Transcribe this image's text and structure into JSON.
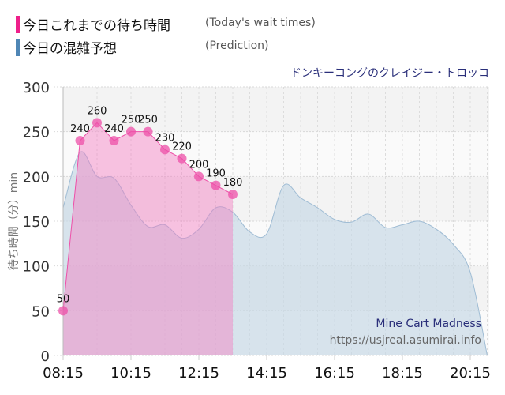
{
  "legend": {
    "items": [
      {
        "label_jp": "今日これまでの待ち時間",
        "label_en": "(Today's wait times)",
        "color": "#ee1f8a"
      },
      {
        "label_jp": "今日の混雑予想",
        "label_en": "(Prediction)",
        "color": "#4f86b5"
      }
    ]
  },
  "ride_title": "ドンキーコングのクレイジー・トロッコ",
  "watermark": {
    "title": "Mine Cart Madness",
    "url": "https://usjreal.asumirai.info"
  },
  "chart_data": {
    "type": "area",
    "title": "ドンキーコングのクレイジー・トロッコ",
    "xlabel": "",
    "ylabel": "待ち時間（分）min",
    "ylim": [
      0,
      300
    ],
    "yticks": [
      0,
      50,
      100,
      150,
      200,
      250,
      300
    ],
    "xticks": [
      "08:15",
      "10:15",
      "12:15",
      "14:15",
      "16:15",
      "18:15",
      "20:15"
    ],
    "grid": true,
    "legend_position": "top-left",
    "series": [
      {
        "name": "今日これまでの待ち時間 (Today's wait times)",
        "color": "#ee1f8a",
        "x": [
          "08:15",
          "08:45",
          "09:15",
          "09:45",
          "10:15",
          "10:45",
          "11:15",
          "11:45",
          "12:15",
          "12:45",
          "13:15"
        ],
        "values": [
          50,
          240,
          260,
          240,
          250,
          250,
          230,
          220,
          200,
          190,
          180
        ],
        "labeled": true
      },
      {
        "name": "今日の混雑予想 (Prediction)",
        "color": "#4f86b5",
        "x": [
          "08:15",
          "08:45",
          "09:15",
          "09:45",
          "10:15",
          "10:45",
          "11:15",
          "11:45",
          "12:15",
          "12:45",
          "13:15",
          "13:45",
          "14:15",
          "14:45",
          "15:15",
          "15:45",
          "16:15",
          "16:45",
          "17:15",
          "17:45",
          "18:15",
          "18:45",
          "19:15",
          "19:45",
          "20:15",
          "20:45"
        ],
        "values": [
          165,
          227,
          200,
          198,
          168,
          144,
          146,
          131,
          141,
          165,
          160,
          138,
          136,
          190,
          176,
          165,
          152,
          149,
          158,
          143,
          146,
          150,
          141,
          124,
          93,
          0
        ]
      }
    ]
  }
}
